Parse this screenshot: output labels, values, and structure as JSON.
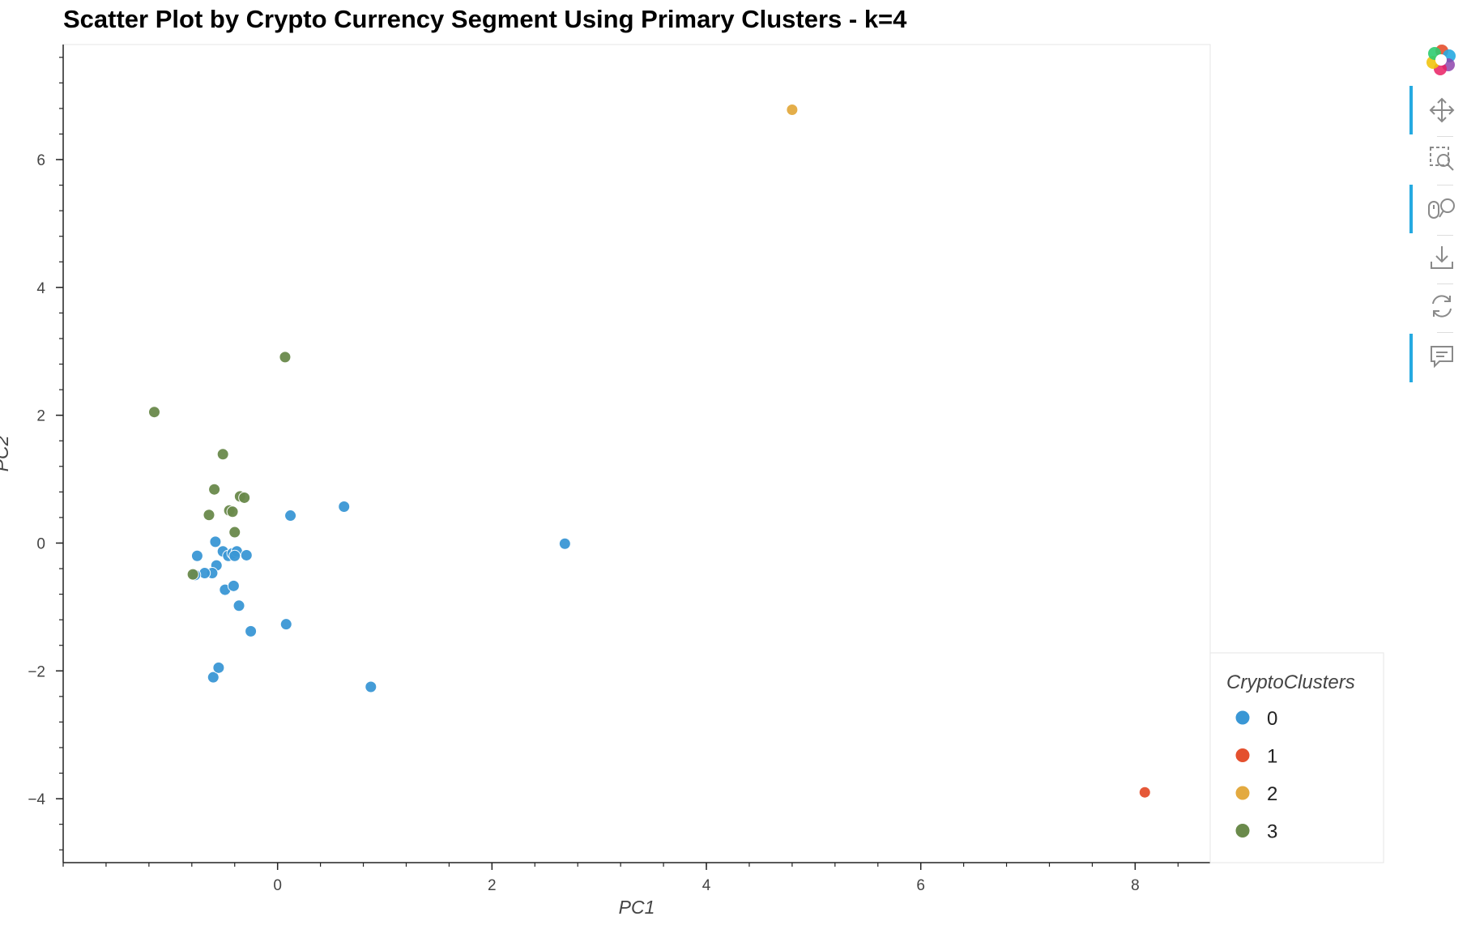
{
  "chart_data": {
    "type": "scatter",
    "title": "Scatter Plot by Crypto Currency Segment Using Primary Clusters - k=4",
    "xlabel": "PC1",
    "ylabel": "PC2",
    "xlim": [
      -2.0,
      8.7
    ],
    "ylim": [
      -5.0,
      7.8
    ],
    "x_ticks": [
      0,
      2,
      4,
      6,
      8
    ],
    "y_ticks": [
      -4,
      -2,
      0,
      2,
      4,
      6
    ],
    "legend_title": "CryptoClusters",
    "legend_position": "right-bottom",
    "grid": false,
    "series": [
      {
        "name": "0",
        "color": "#3a97d5",
        "points": [
          {
            "x": -0.6,
            "y": -2.1
          },
          {
            "x": -0.55,
            "y": -1.95
          },
          {
            "x": 0.87,
            "y": -2.25
          },
          {
            "x": -0.25,
            "y": -1.38
          },
          {
            "x": 0.08,
            "y": -1.27
          },
          {
            "x": -0.36,
            "y": -0.98
          },
          {
            "x": -0.49,
            "y": -0.73
          },
          {
            "x": -0.41,
            "y": -0.67
          },
          {
            "x": -0.57,
            "y": -0.35
          },
          {
            "x": -0.61,
            "y": -0.47
          },
          {
            "x": -0.68,
            "y": -0.47
          },
          {
            "x": -0.77,
            "y": -0.5
          },
          {
            "x": -0.75,
            "y": -0.2
          },
          {
            "x": -0.51,
            "y": -0.13
          },
          {
            "x": -0.46,
            "y": -0.2
          },
          {
            "x": -0.42,
            "y": -0.16
          },
          {
            "x": -0.38,
            "y": -0.13
          },
          {
            "x": -0.4,
            "y": -0.2
          },
          {
            "x": -0.29,
            "y": -0.19
          },
          {
            "x": -0.58,
            "y": 0.02
          },
          {
            "x": 0.12,
            "y": 0.43
          },
          {
            "x": 0.62,
            "y": 0.57
          },
          {
            "x": 2.68,
            "y": -0.01
          }
        ]
      },
      {
        "name": "1",
        "color": "#e4502e",
        "points": [
          {
            "x": 8.09,
            "y": -3.9
          }
        ]
      },
      {
        "name": "2",
        "color": "#e3aa40",
        "points": [
          {
            "x": 4.8,
            "y": 6.78
          }
        ]
      },
      {
        "name": "3",
        "color": "#6a8a4b",
        "points": [
          {
            "x": -1.15,
            "y": 2.05
          },
          {
            "x": 0.07,
            "y": 2.91
          },
          {
            "x": -0.51,
            "y": 1.39
          },
          {
            "x": -0.59,
            "y": 0.84
          },
          {
            "x": -0.35,
            "y": 0.73
          },
          {
            "x": -0.31,
            "y": 0.71
          },
          {
            "x": -0.45,
            "y": 0.51
          },
          {
            "x": -0.42,
            "y": 0.49
          },
          {
            "x": -0.64,
            "y": 0.44
          },
          {
            "x": -0.4,
            "y": 0.17
          },
          {
            "x": -0.79,
            "y": -0.49
          }
        ]
      }
    ]
  },
  "toolbar": {
    "tools": [
      "bokeh-logo-icon",
      "pan-icon",
      "box-zoom-icon",
      "wheel-zoom-icon",
      "save-icon",
      "reset-icon",
      "hover-icon"
    ]
  }
}
